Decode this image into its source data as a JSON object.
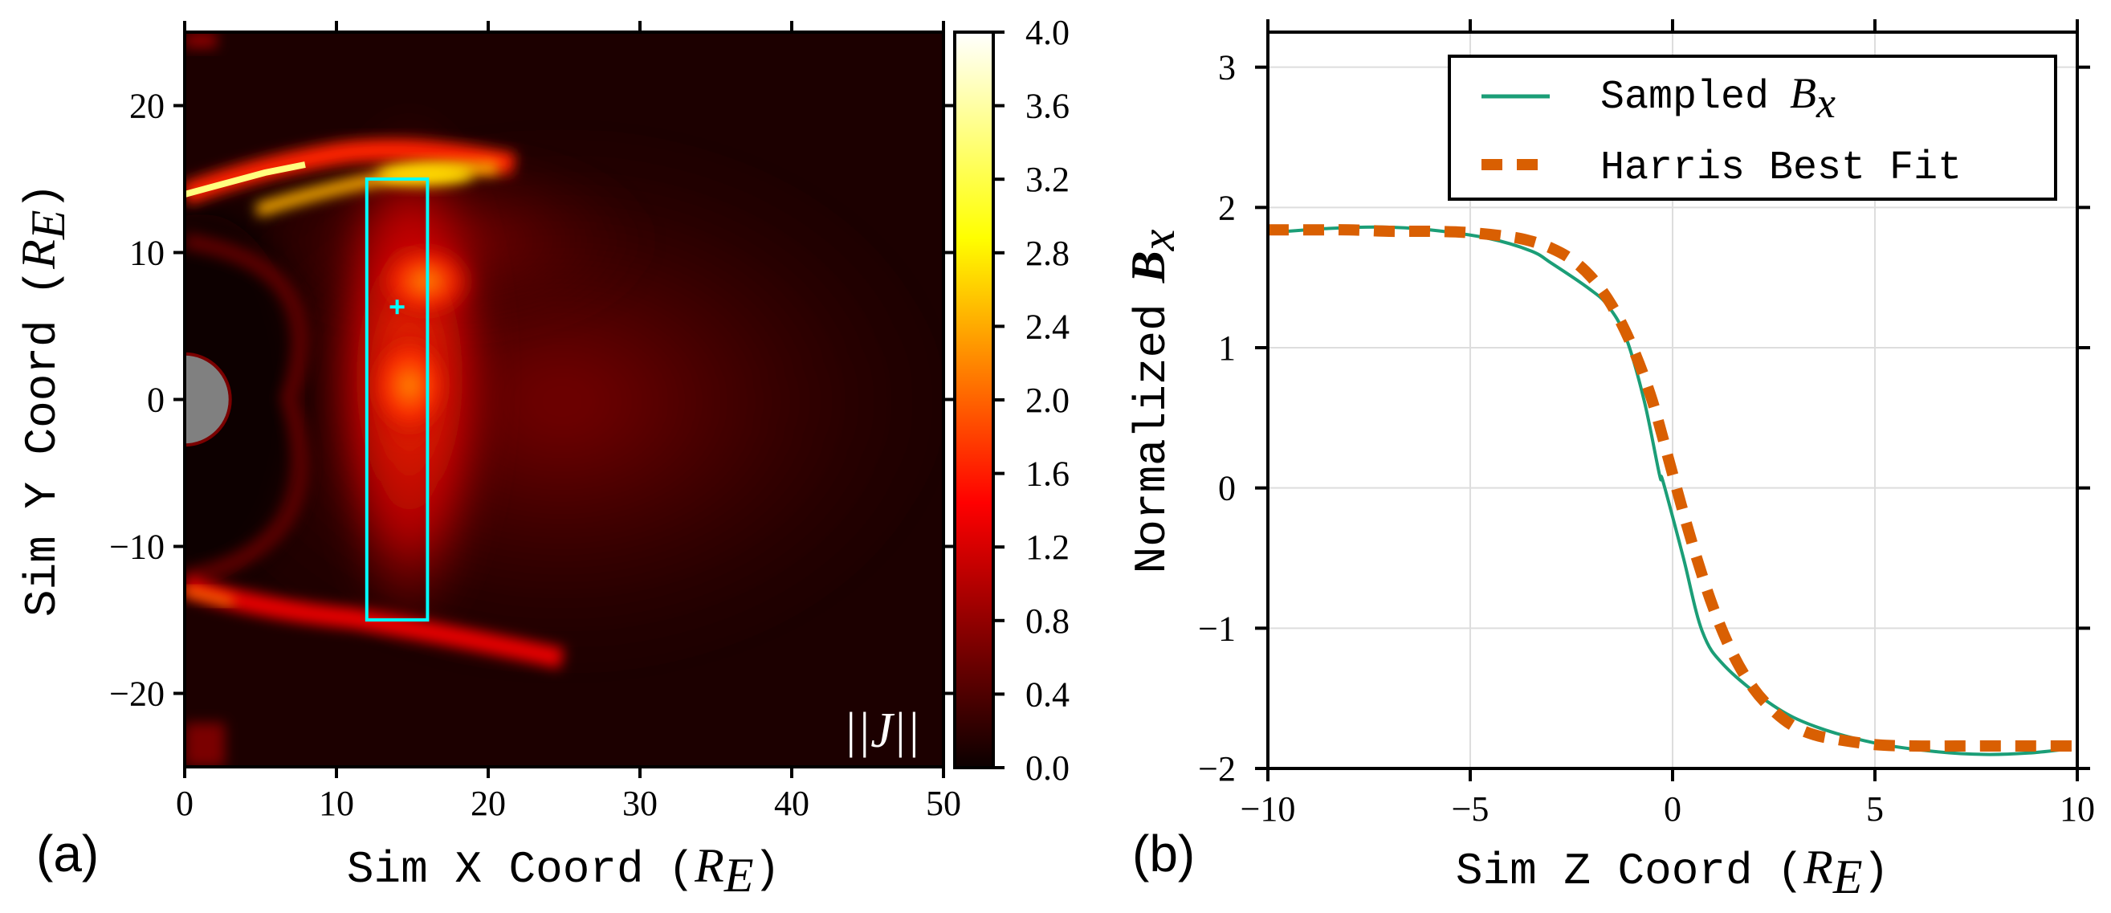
{
  "chart_data": [
    {
      "type": "heatmap",
      "panel_label": "(a)",
      "xlabel": "Sim X Coord",
      "xlabel_unit": "R",
      "xlabel_unit_sub": "E",
      "ylabel": "Sim Y Coord",
      "ylabel_unit": "R",
      "ylabel_unit_sub": "E",
      "xlim": [
        0,
        50
      ],
      "ylim": [
        -25,
        25
      ],
      "xticks": [
        0,
        10,
        20,
        30,
        40,
        50
      ],
      "xtick_labels": [
        "0",
        "10",
        "20",
        "30",
        "40",
        "50"
      ],
      "yticks": [
        20,
        10,
        0,
        -10,
        -20
      ],
      "ytick_labels": [
        "20",
        "10",
        "0",
        "−10",
        "−20"
      ],
      "quantity_label": "||J||",
      "colormap": "hot",
      "colorbar": {
        "range": [
          0.0,
          4.0
        ],
        "ticks": [
          0.0,
          0.4,
          0.8,
          1.2,
          1.6,
          2.0,
          2.4,
          2.8,
          3.2,
          3.6,
          4.0
        ],
        "tick_labels": [
          "0.0",
          "0.4",
          "0.8",
          "1.2",
          "1.6",
          "2.0",
          "2.4",
          "2.8",
          "3.2",
          "3.6",
          "4.0"
        ]
      },
      "earth": {
        "center": [
          0,
          0
        ],
        "radius": 3,
        "color": "#808080"
      },
      "sample_box": {
        "x": [
          12,
          16
        ],
        "y": [
          -15,
          15
        ],
        "color": "#00ffff"
      },
      "sample_point": {
        "x": 14,
        "y": 6.3,
        "color": "#00ffff"
      },
      "features": [
        {
          "name": "upper-magnetopause",
          "x": [
            0,
            16
          ],
          "y": [
            14,
            16
          ],
          "peak_value": 4.0
        },
        {
          "name": "upper-current-hotspot",
          "x": [
            14,
            18
          ],
          "y": [
            14,
            16
          ],
          "peak_value": 3.0
        },
        {
          "name": "mid-current-blob",
          "x": [
            14,
            18
          ],
          "y": [
            9,
            12
          ],
          "peak_value": 2.4
        },
        {
          "name": "equatorial-current-blob",
          "x": [
            12,
            17
          ],
          "y": [
            -2,
            4
          ],
          "peak_value": 2.2
        },
        {
          "name": "lower-magnetopause",
          "x": [
            0,
            20
          ],
          "y": [
            -17,
            -12
          ],
          "peak_value": 2.6
        }
      ]
    },
    {
      "type": "line",
      "panel_label": "(b)",
      "xlabel": "Sim Z Coord",
      "xlabel_unit": "R",
      "xlabel_unit_sub": "E",
      "ylabel": "Normalized",
      "ylabel_math": "B",
      "ylabel_math_sub": "x",
      "xlim": [
        -10,
        10
      ],
      "ylim": [
        -2,
        3.25
      ],
      "xticks": [
        -10,
        -5,
        0,
        5,
        10
      ],
      "xtick_labels": [
        "−10",
        "−5",
        "0",
        "5",
        "10"
      ],
      "yticks": [
        3,
        2,
        1,
        0,
        -1,
        -2
      ],
      "ytick_labels": [
        "3",
        "2",
        "1",
        "0",
        "−1",
        "−2"
      ],
      "grid": true,
      "legend": "top-right",
      "series": [
        {
          "name": "Sampled B_x",
          "legend_text": "Sampled",
          "legend_math": "B",
          "legend_math_sub": "x",
          "color": "#1b9e77",
          "style": "solid",
          "x": [
            -9.95,
            -8.5,
            -7.2,
            -6.0,
            -4.56,
            -3.5,
            -2.98,
            -2.06,
            -1.6,
            -1.15,
            -0.7,
            -0.32,
            -0.24,
            0.26,
            0.73,
            1.29,
            2.48,
            3.52,
            5.02,
            6.5,
            7.7,
            8.8,
            9.82
          ],
          "y": [
            1.82,
            1.85,
            1.86,
            1.84,
            1.78,
            1.69,
            1.6,
            1.42,
            1.3,
            1.07,
            0.62,
            0.09,
            0.05,
            -0.49,
            -1.02,
            -1.27,
            -1.55,
            -1.7,
            -1.82,
            -1.88,
            -1.9,
            -1.89,
            -1.86
          ]
        },
        {
          "name": "Harris Best Fit",
          "legend_text": "Harris Best Fit",
          "color": "#d95f02",
          "style": "dashed",
          "model": "B0 * tanh(-(z - z0) / L)",
          "params": {
            "B0": 1.84,
            "z0": -0.1,
            "L": 1.8
          },
          "x": [
            -10,
            -9,
            -8,
            -7,
            -6,
            -5,
            -4,
            -3.5,
            -3,
            -2.5,
            -2,
            -1.5,
            -1,
            -0.5,
            0,
            0.5,
            1,
            1.5,
            2,
            2.5,
            3,
            3.5,
            4,
            5,
            6,
            7,
            8,
            9,
            10
          ],
          "y": [
            1.84,
            1.84,
            1.84,
            1.83,
            1.83,
            1.82,
            1.79,
            1.76,
            1.71,
            1.63,
            1.5,
            1.3,
            1.01,
            0.62,
            0.1,
            -0.41,
            -0.85,
            -1.19,
            -1.43,
            -1.59,
            -1.7,
            -1.76,
            -1.79,
            -1.83,
            -1.84,
            -1.84,
            -1.84,
            -1.84,
            -1.84
          ]
        }
      ]
    }
  ]
}
